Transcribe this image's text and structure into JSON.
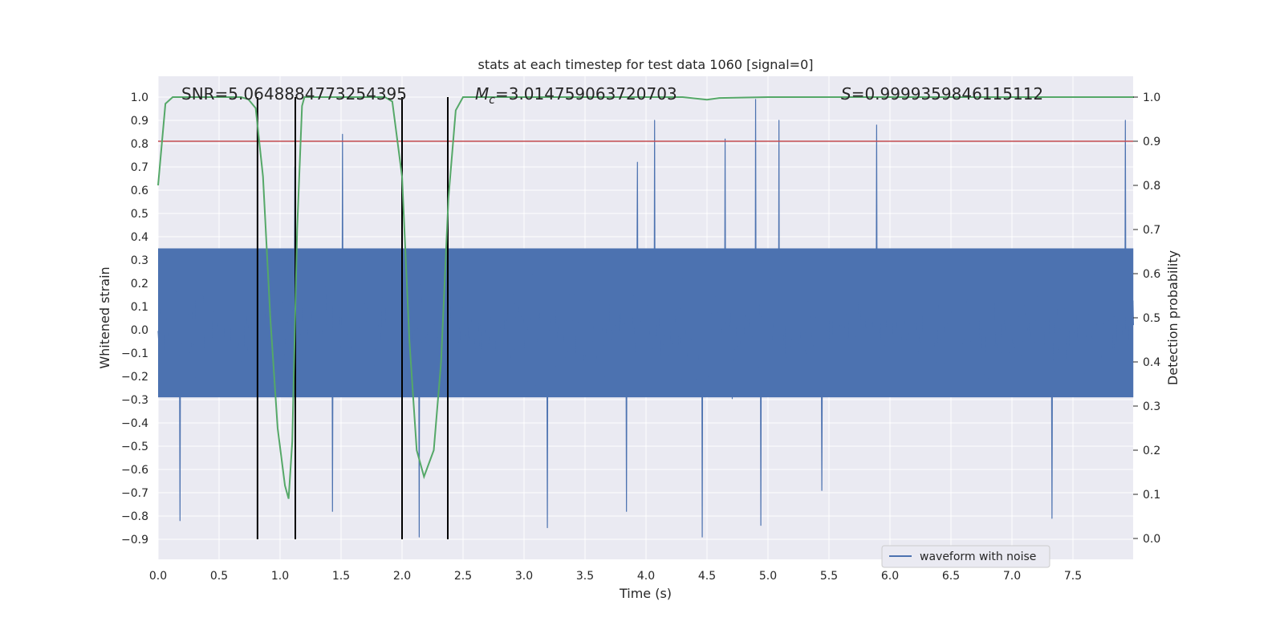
{
  "chart_data": {
    "type": "line",
    "title": "stats at each timestep for test data 1060 [signal=0]",
    "xlabel": "Time (s)",
    "ylabel": "Whitened strain",
    "ylabel_right": "Detection probability",
    "xlim": [
      0.0,
      8.0
    ],
    "ylim": [
      -1.08,
      1.08
    ],
    "ylim_right": [
      -0.05,
      1.05
    ],
    "grid": true,
    "legend": {
      "position": "bottom-right",
      "entries": [
        "waveform with noise"
      ]
    },
    "x_ticks": [
      "0.0",
      "0.5",
      "1.0",
      "1.5",
      "2.0",
      "2.5",
      "3.0",
      "3.5",
      "4.0",
      "4.5",
      "5.0",
      "5.5",
      "6.0",
      "6.5",
      "7.0",
      "7.5"
    ],
    "x_tick_values": [
      0.0,
      0.5,
      1.0,
      1.5,
      2.0,
      2.5,
      3.0,
      3.5,
      4.0,
      4.5,
      5.0,
      5.5,
      6.0,
      6.5,
      7.0,
      7.5
    ],
    "y_ticks": [
      "1.0",
      "0.9",
      "0.8",
      "0.7",
      "0.6",
      "0.5",
      "0.4",
      "0.3",
      "0.2",
      "0.1",
      "0.0",
      "−0.1",
      "−0.2",
      "−0.3",
      "−0.4",
      "−0.5",
      "−0.6",
      "−0.7",
      "−0.8",
      "−0.9"
    ],
    "y_tick_values": [
      1.0,
      0.9,
      0.8,
      0.7,
      0.6,
      0.5,
      0.4,
      0.3,
      0.2,
      0.1,
      0.0,
      -0.1,
      -0.2,
      -0.3,
      -0.4,
      -0.5,
      -0.6,
      -0.7,
      -0.8,
      -0.9
    ],
    "y_right_ticks": [
      "1.0",
      "0.9",
      "0.8",
      "0.7",
      "0.6",
      "0.5",
      "0.4",
      "0.3",
      "0.2",
      "0.1",
      "0.0"
    ],
    "y_right_tick_values": [
      1.0,
      0.9,
      0.8,
      0.7,
      0.6,
      0.5,
      0.4,
      0.3,
      0.2,
      0.1,
      0.0
    ],
    "annotations": {
      "snr": "SNR=5.0648884773254395",
      "mc_symbol": "M",
      "mc_sub": "c",
      "mc_value": "=3.014759063720703",
      "s_symbol": "S",
      "s_value": "=0.9999359846115112"
    },
    "waveform": {
      "name": "waveform with noise",
      "color": "#4c72b0",
      "num_samples": 2048,
      "typical_band": [
        -0.33,
        0.42
      ],
      "peaks": [
        {
          "x": 1.51,
          "y": 0.84
        },
        {
          "x": 4.07,
          "y": 0.9
        },
        {
          "x": 4.65,
          "y": 0.82
        },
        {
          "x": 4.9,
          "y": 0.99
        },
        {
          "x": 5.09,
          "y": 0.9
        },
        {
          "x": 5.89,
          "y": 0.88
        },
        {
          "x": 7.93,
          "y": 0.9
        },
        {
          "x": 1.12,
          "y": 0.7
        },
        {
          "x": 3.93,
          "y": 0.72
        }
      ],
      "troughs": [
        {
          "x": 0.18,
          "y": -0.82
        },
        {
          "x": 4.46,
          "y": -0.89
        },
        {
          "x": 2.14,
          "y": -0.89
        },
        {
          "x": 4.94,
          "y": -0.84
        },
        {
          "x": 3.19,
          "y": -0.85
        },
        {
          "x": 3.84,
          "y": -0.78
        },
        {
          "x": 7.33,
          "y": -0.81
        },
        {
          "x": 1.43,
          "y": -0.78
        },
        {
          "x": 5.44,
          "y": -0.69
        }
      ]
    },
    "detection_probability": {
      "color": "#55a868",
      "x": [
        0.0,
        0.06,
        0.12,
        0.2,
        0.3,
        0.4,
        0.5,
        0.6,
        0.68,
        0.74,
        0.8,
        0.86,
        0.92,
        0.98,
        1.04,
        1.07,
        1.1,
        1.14,
        1.18,
        1.2,
        1.3,
        1.5,
        1.7,
        1.86,
        1.92,
        2.0,
        2.06,
        2.12,
        2.18,
        2.26,
        2.32,
        2.38,
        2.44,
        2.5,
        2.7,
        3.0,
        3.5,
        4.0,
        4.3,
        4.5,
        4.6,
        5.0,
        5.5,
        6.0,
        6.5,
        7.0,
        7.5,
        8.0
      ],
      "y": [
        0.8,
        0.985,
        1.0,
        1.0,
        1.0,
        1.0,
        1.0,
        1.0,
        1.0,
        0.995,
        0.975,
        0.82,
        0.5,
        0.25,
        0.12,
        0.09,
        0.22,
        0.7,
        0.98,
        1.0,
        1.0,
        1.0,
        1.0,
        1.0,
        0.99,
        0.82,
        0.45,
        0.2,
        0.14,
        0.2,
        0.4,
        0.77,
        0.97,
        1.0,
        1.0,
        1.0,
        1.0,
        1.0,
        1.0,
        0.994,
        0.998,
        1.0,
        1.0,
        1.0,
        1.0,
        1.0,
        1.0,
        1.0
      ]
    },
    "threshold": {
      "value_right": 0.9,
      "color": "#c44e52"
    },
    "vertical_markers": {
      "x": [
        0.815,
        1.125,
        2.0,
        2.375
      ],
      "color": "#000000"
    }
  }
}
